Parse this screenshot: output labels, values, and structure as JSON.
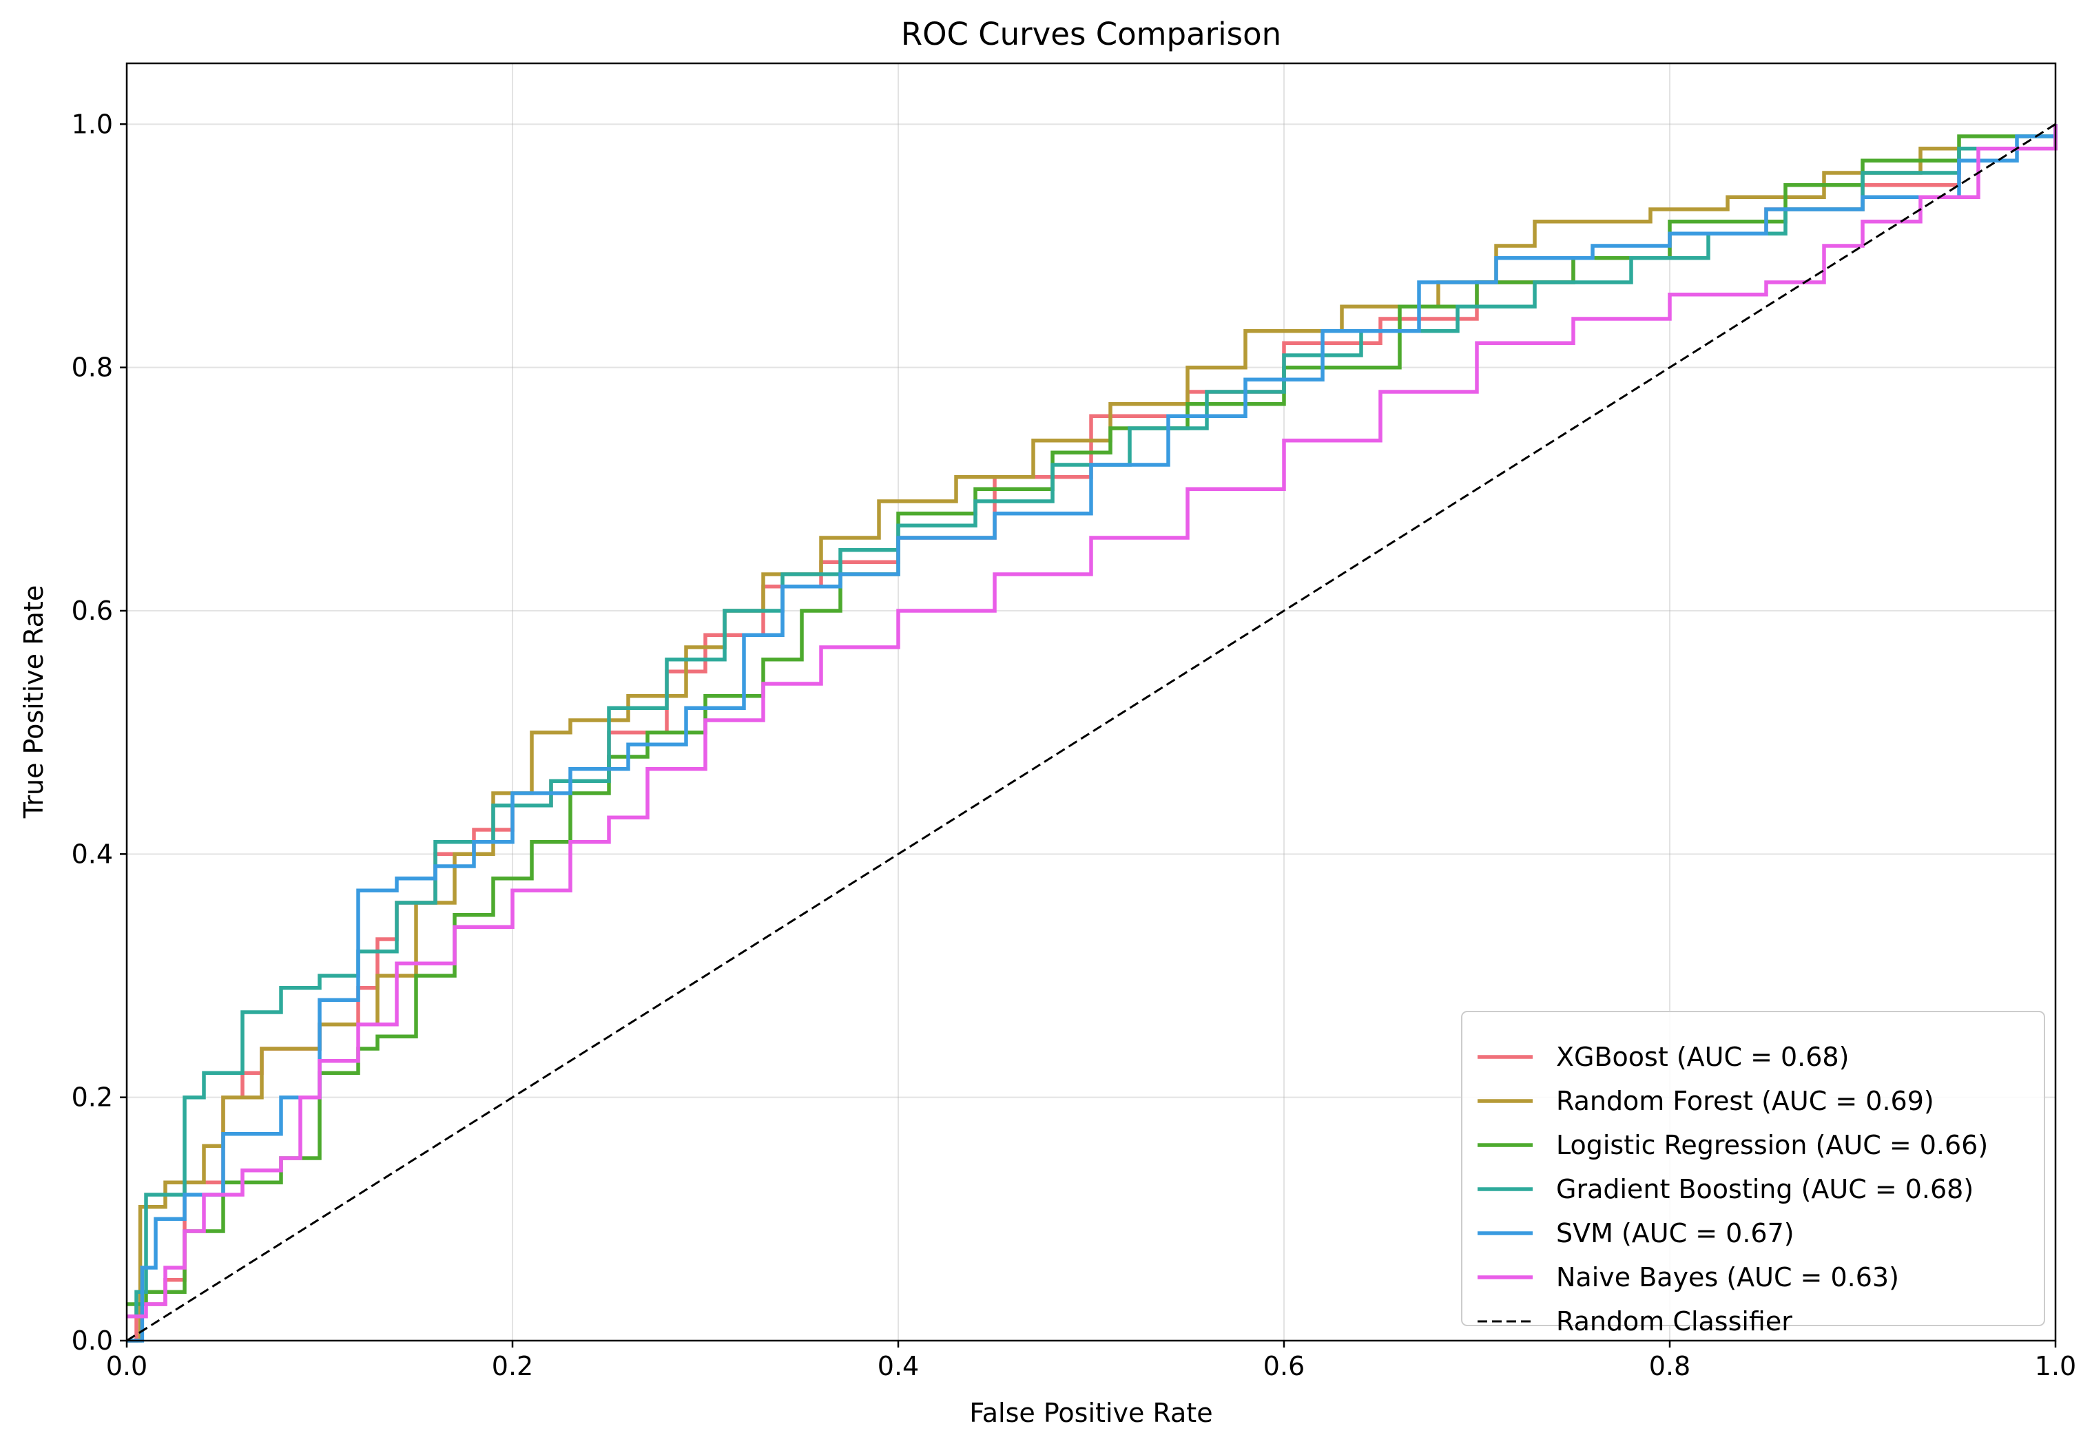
{
  "chart_data": {
    "type": "line",
    "title": "ROC Curves Comparison",
    "xlabel": "False Positive Rate",
    "ylabel": "True Positive Rate",
    "xlim": [
      0.0,
      1.0
    ],
    "ylim": [
      0.0,
      1.05
    ],
    "x_ticks": [
      "0.0",
      "0.2",
      "0.4",
      "0.6",
      "0.8",
      "1.0"
    ],
    "y_ticks": [
      "0.0",
      "0.2",
      "0.4",
      "0.6",
      "0.8",
      "1.0"
    ],
    "grid": true,
    "legend_position": "bottom-right",
    "series": [
      {
        "name": "XGBoost (AUC = 0.68)",
        "color": "#f0707a",
        "step": true,
        "x": [
          0,
          0.005,
          0.02,
          0.03,
          0.05,
          0.06,
          0.07,
          0.1,
          0.12,
          0.13,
          0.14,
          0.16,
          0.18,
          0.2,
          0.22,
          0.25,
          0.28,
          0.3,
          0.33,
          0.36,
          0.4,
          0.45,
          0.5,
          0.55,
          0.6,
          0.65,
          0.7,
          0.75,
          0.8,
          0.85,
          0.9,
          0.95,
          1.0
        ],
        "y": [
          0,
          0.03,
          0.05,
          0.13,
          0.2,
          0.22,
          0.24,
          0.26,
          0.29,
          0.33,
          0.36,
          0.4,
          0.42,
          0.44,
          0.46,
          0.5,
          0.55,
          0.58,
          0.62,
          0.64,
          0.66,
          0.71,
          0.76,
          0.78,
          0.82,
          0.84,
          0.87,
          0.89,
          0.91,
          0.93,
          0.95,
          0.98,
          1.0
        ]
      },
      {
        "name": "Random Forest (AUC = 0.69)",
        "color": "#b59a36",
        "step": true,
        "x": [
          0,
          0.007,
          0.02,
          0.04,
          0.05,
          0.07,
          0.1,
          0.13,
          0.15,
          0.17,
          0.19,
          0.21,
          0.23,
          0.26,
          0.29,
          0.31,
          0.33,
          0.36,
          0.39,
          0.43,
          0.47,
          0.51,
          0.55,
          0.58,
          0.63,
          0.68,
          0.71,
          0.73,
          0.79,
          0.83,
          0.88,
          0.93,
          1.0
        ],
        "y": [
          0,
          0.11,
          0.13,
          0.16,
          0.2,
          0.24,
          0.26,
          0.3,
          0.36,
          0.4,
          0.45,
          0.5,
          0.51,
          0.53,
          0.57,
          0.6,
          0.63,
          0.66,
          0.69,
          0.71,
          0.74,
          0.77,
          0.8,
          0.83,
          0.85,
          0.87,
          0.9,
          0.92,
          0.93,
          0.94,
          0.96,
          0.98,
          1.0
        ]
      },
      {
        "name": "Logistic Regression (AUC = 0.66)",
        "color": "#4daa2e",
        "step": true,
        "x": [
          0,
          0.01,
          0.03,
          0.05,
          0.08,
          0.1,
          0.12,
          0.13,
          0.15,
          0.17,
          0.19,
          0.21,
          0.23,
          0.25,
          0.27,
          0.3,
          0.33,
          0.35,
          0.37,
          0.4,
          0.44,
          0.48,
          0.51,
          0.55,
          0.6,
          0.66,
          0.7,
          0.75,
          0.8,
          0.86,
          0.9,
          0.95,
          1.0
        ],
        "y": [
          0.03,
          0.04,
          0.09,
          0.13,
          0.15,
          0.22,
          0.24,
          0.25,
          0.3,
          0.35,
          0.38,
          0.41,
          0.45,
          0.48,
          0.5,
          0.53,
          0.56,
          0.6,
          0.63,
          0.68,
          0.7,
          0.73,
          0.75,
          0.77,
          0.8,
          0.85,
          0.87,
          0.89,
          0.92,
          0.95,
          0.97,
          0.99,
          1.0
        ]
      },
      {
        "name": "Gradient Boosting (AUC = 0.68)",
        "color": "#2eaa9b",
        "step": true,
        "x": [
          0,
          0.005,
          0.01,
          0.03,
          0.04,
          0.06,
          0.08,
          0.1,
          0.12,
          0.14,
          0.16,
          0.19,
          0.22,
          0.25,
          0.28,
          0.31,
          0.34,
          0.37,
          0.4,
          0.44,
          0.48,
          0.52,
          0.56,
          0.6,
          0.64,
          0.69,
          0.73,
          0.78,
          0.82,
          0.86,
          0.9,
          0.95,
          1.0
        ],
        "y": [
          0.02,
          0.04,
          0.12,
          0.2,
          0.22,
          0.27,
          0.29,
          0.3,
          0.32,
          0.36,
          0.41,
          0.44,
          0.46,
          0.52,
          0.56,
          0.6,
          0.63,
          0.65,
          0.67,
          0.69,
          0.72,
          0.75,
          0.78,
          0.81,
          0.83,
          0.85,
          0.87,
          0.89,
          0.91,
          0.93,
          0.96,
          0.98,
          1.0
        ]
      },
      {
        "name": "SVM (AUC = 0.67)",
        "color": "#3a9be0",
        "step": true,
        "x": [
          0,
          0.008,
          0.015,
          0.03,
          0.05,
          0.08,
          0.1,
          0.12,
          0.14,
          0.16,
          0.18,
          0.2,
          0.23,
          0.26,
          0.29,
          0.32,
          0.34,
          0.37,
          0.4,
          0.45,
          0.5,
          0.54,
          0.58,
          0.62,
          0.67,
          0.71,
          0.76,
          0.8,
          0.85,
          0.9,
          0.95,
          0.98,
          1.0
        ],
        "y": [
          0,
          0.06,
          0.1,
          0.12,
          0.17,
          0.2,
          0.28,
          0.37,
          0.38,
          0.39,
          0.41,
          0.45,
          0.47,
          0.49,
          0.52,
          0.58,
          0.62,
          0.63,
          0.66,
          0.68,
          0.72,
          0.76,
          0.79,
          0.83,
          0.87,
          0.89,
          0.9,
          0.91,
          0.93,
          0.94,
          0.97,
          0.99,
          1.0
        ]
      },
      {
        "name": "Naive Bayes (AUC = 0.63)",
        "color": "#e95ee8",
        "step": true,
        "x": [
          0,
          0.01,
          0.02,
          0.03,
          0.04,
          0.06,
          0.08,
          0.09,
          0.1,
          0.12,
          0.14,
          0.17,
          0.2,
          0.23,
          0.25,
          0.27,
          0.3,
          0.33,
          0.36,
          0.4,
          0.45,
          0.5,
          0.55,
          0.6,
          0.65,
          0.7,
          0.75,
          0.8,
          0.85,
          0.88,
          0.9,
          0.93,
          0.96,
          1.0
        ],
        "y": [
          0.02,
          0.03,
          0.06,
          0.09,
          0.12,
          0.14,
          0.15,
          0.2,
          0.23,
          0.26,
          0.31,
          0.34,
          0.37,
          0.41,
          0.43,
          0.47,
          0.51,
          0.54,
          0.57,
          0.6,
          0.63,
          0.66,
          0.7,
          0.74,
          0.78,
          0.82,
          0.84,
          0.86,
          0.87,
          0.9,
          0.92,
          0.94,
          0.98,
          1.0
        ]
      },
      {
        "name": "Random Classifier",
        "color": "#000000",
        "dashed": true,
        "step": false,
        "x": [
          0,
          1
        ],
        "y": [
          0,
          1
        ]
      }
    ]
  }
}
